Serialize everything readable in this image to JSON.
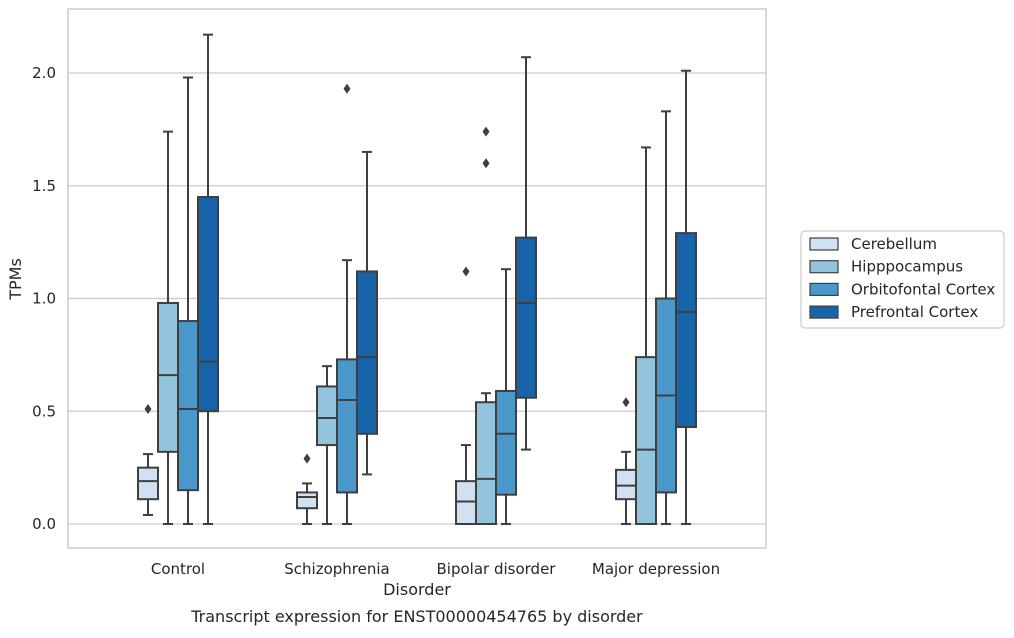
{
  "chart_data": {
    "type": "box",
    "xlabel": "Disorder",
    "ylabel": "TPMs",
    "caption": "Transcript expression for ENST00000454765 by disorder",
    "categories": [
      "Control",
      "Schizophrenia",
      "Bipolar disorder",
      "Major depression"
    ],
    "yticks": [
      "0.0",
      "0.5",
      "1.0",
      "1.5",
      "2.0"
    ],
    "ylim": [
      -0.1,
      2.3
    ],
    "grid": "horizontal",
    "legend_position": "right",
    "series": [
      {
        "name": "Cerebellum",
        "color": "#cfe1f2",
        "boxes": [
          {
            "whisker_low": 0.04,
            "q1": 0.11,
            "median": 0.19,
            "q3": 0.25,
            "whisker_high": 0.31,
            "outliers": [
              0.51
            ]
          },
          {
            "whisker_low": 0.0,
            "q1": 0.07,
            "median": 0.12,
            "q3": 0.14,
            "whisker_high": 0.18,
            "outliers": [
              0.29
            ]
          },
          {
            "whisker_low": 0.0,
            "q1": 0.0,
            "median": 0.1,
            "q3": 0.19,
            "whisker_high": 0.35,
            "outliers": [
              1.12
            ]
          },
          {
            "whisker_low": 0.0,
            "q1": 0.11,
            "median": 0.17,
            "q3": 0.24,
            "whisker_high": 0.32,
            "outliers": [
              0.54
            ]
          }
        ]
      },
      {
        "name": "Hipppocampus",
        "color": "#93c4de",
        "boxes": [
          {
            "whisker_low": 0.0,
            "q1": 0.32,
            "median": 0.66,
            "q3": 0.98,
            "whisker_high": 1.74,
            "outliers": []
          },
          {
            "whisker_low": 0.0,
            "q1": 0.35,
            "median": 0.47,
            "q3": 0.61,
            "whisker_high": 0.7,
            "outliers": []
          },
          {
            "whisker_low": 0.0,
            "q1": 0.0,
            "median": 0.2,
            "q3": 0.54,
            "whisker_high": 0.58,
            "outliers": [
              1.6,
              1.74
            ]
          },
          {
            "whisker_low": 0.0,
            "q1": 0.0,
            "median": 0.33,
            "q3": 0.74,
            "whisker_high": 1.67,
            "outliers": []
          }
        ]
      },
      {
        "name": "Orbitofontal Cortex",
        "color": "#4a98c9",
        "boxes": [
          {
            "whisker_low": 0.0,
            "q1": 0.15,
            "median": 0.51,
            "q3": 0.9,
            "whisker_high": 1.98,
            "outliers": []
          },
          {
            "whisker_low": 0.0,
            "q1": 0.14,
            "median": 0.55,
            "q3": 0.73,
            "whisker_high": 1.17,
            "outliers": [
              1.93
            ]
          },
          {
            "whisker_low": 0.0,
            "q1": 0.13,
            "median": 0.4,
            "q3": 0.59,
            "whisker_high": 1.13,
            "outliers": []
          },
          {
            "whisker_low": 0.0,
            "q1": 0.14,
            "median": 0.57,
            "q3": 1.0,
            "whisker_high": 1.83,
            "outliers": []
          }
        ]
      },
      {
        "name": "Prefrontal Cortex",
        "color": "#1764ab",
        "boxes": [
          {
            "whisker_low": 0.0,
            "q1": 0.5,
            "median": 0.72,
            "q3": 1.45,
            "whisker_high": 2.17,
            "outliers": []
          },
          {
            "whisker_low": 0.22,
            "q1": 0.4,
            "median": 0.74,
            "q3": 1.12,
            "whisker_high": 1.65,
            "outliers": []
          },
          {
            "whisker_low": 0.33,
            "q1": 0.56,
            "median": 0.98,
            "q3": 1.27,
            "whisker_high": 2.07,
            "outliers": []
          },
          {
            "whisker_low": 0.0,
            "q1": 0.43,
            "median": 0.94,
            "q3": 1.29,
            "whisker_high": 2.01,
            "outliers": []
          }
        ]
      }
    ]
  }
}
